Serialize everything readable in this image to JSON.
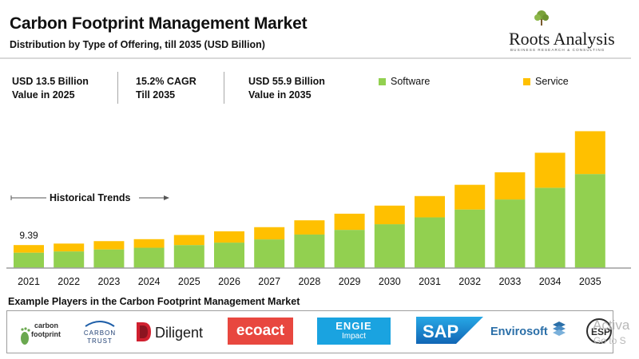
{
  "header": {
    "title": "Carbon Footprint Management Market",
    "subtitle": "Distribution by Type of Offering, till 2035 (USD Billion)"
  },
  "brand": {
    "name": "Roots Analysis",
    "tagline": "BUSINESS RESEARCH & CONSULTING"
  },
  "stats": [
    {
      "line1": "USD 13.5 Billion",
      "line2": "Value in 2025"
    },
    {
      "line1": "15.2% CAGR",
      "line2": "Till 2035"
    },
    {
      "line1": "USD 55.9 Billion",
      "line2": "Value in 2035"
    }
  ],
  "colors": {
    "software": "#92d050",
    "service": "#ffc000",
    "axis": "#9e9e9e"
  },
  "historical_label": "Historical Trends",
  "chart_data": {
    "type": "bar",
    "stacked": true,
    "title": "Carbon Footprint Management Market",
    "subtitle": "Distribution by Type of Offering, till 2035 (USD Billion)",
    "categories": [
      "2021",
      "2022",
      "2023",
      "2024",
      "2025",
      "2026",
      "2027",
      "2028",
      "2029",
      "2030",
      "2031",
      "2032",
      "2033",
      "2034",
      "2035"
    ],
    "series": [
      {
        "name": "Software",
        "color": "#92d050",
        "values": [
          6.3,
          6.8,
          7.6,
          8.3,
          9.4,
          10.4,
          11.7,
          13.7,
          15.6,
          17.9,
          20.7,
          23.9,
          28.0,
          32.8,
          38.4
        ]
      },
      {
        "name": "Service",
        "color": "#ffc000",
        "values": [
          3.09,
          3.2,
          3.4,
          3.5,
          4.1,
          4.6,
          5.0,
          5.8,
          6.6,
          7.6,
          8.7,
          10.1,
          11.1,
          14.3,
          17.5
        ]
      }
    ],
    "data_labels": [
      {
        "category": "2021",
        "text": "9.39"
      }
    ],
    "ylim": [
      0,
      58
    ],
    "xlabel": "",
    "ylabel": "",
    "grid": false,
    "legend": "top-right"
  },
  "players": {
    "title": "Example Players in the Carbon Footprint Management Market",
    "logos": [
      {
        "name": "carbon-footprint",
        "line1": "carbon",
        "line2": "footprint"
      },
      {
        "name": "carbon-trust",
        "line1": "CARBON",
        "line2": "TRUST"
      },
      {
        "name": "diligent",
        "text": "Diligent"
      },
      {
        "name": "ecoact",
        "text": "ecoact"
      },
      {
        "name": "engie-impact",
        "line1": "ENGIE",
        "line2": "Impact"
      },
      {
        "name": "sap",
        "text": "SAP"
      },
      {
        "name": "envirosoft",
        "text": "Envirosoft"
      },
      {
        "name": "esp",
        "text": "ESP"
      }
    ]
  },
  "watermark": {
    "line1": "Activa",
    "line2": "Go to S"
  }
}
